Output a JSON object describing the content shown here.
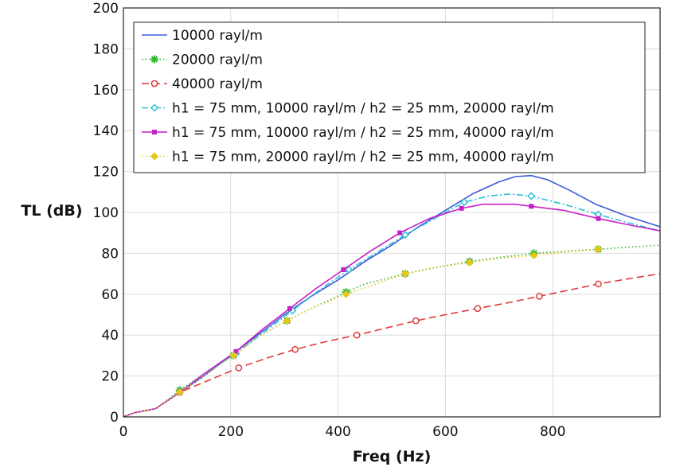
{
  "chart_data": {
    "type": "line",
    "xlabel": "Freq (Hz)",
    "ylabel": "TL (dB)",
    "xlim": [
      0,
      1000
    ],
    "ylim": [
      0,
      200
    ],
    "xticks": [
      0,
      200,
      400,
      600,
      800
    ],
    "yticks": [
      0,
      20,
      40,
      60,
      80,
      100,
      120,
      140,
      160,
      180,
      200
    ],
    "grid": true,
    "legend_position": "top-left",
    "series": [
      {
        "name": "10000 rayl/m",
        "color": "#3b5bdb",
        "line_style": "solid",
        "marker": "none",
        "x": [
          0,
          20,
          40,
          60,
          100,
          150,
          200,
          250,
          300,
          350,
          400,
          450,
          500,
          550,
          600,
          650,
          700,
          730,
          760,
          790,
          830,
          880,
          940,
          1000
        ],
        "y": [
          0,
          2,
          3,
          4,
          11,
          20,
          30,
          40,
          50,
          59,
          67,
          76,
          84,
          93,
          101,
          109,
          115,
          117.5,
          118,
          116,
          111,
          104,
          98,
          93
        ]
      },
      {
        "name": "20000 rayl/m",
        "color": "#2db82d",
        "line_style": "dotted",
        "marker": "asterisk",
        "x": [
          0,
          20,
          40,
          60,
          105,
          150,
          205,
          250,
          305,
          350,
          415,
          450,
          525,
          580,
          645,
          700,
          765,
          820,
          885,
          940,
          1000
        ],
        "y": [
          0,
          2,
          3,
          4,
          13,
          21,
          30,
          39,
          47,
          53,
          61,
          65,
          70,
          73,
          76,
          78,
          80,
          81,
          82,
          83,
          84
        ],
        "marker_x": [
          105,
          205,
          305,
          415,
          525,
          645,
          765,
          885
        ]
      },
      {
        "name": "40000 rayl/m",
        "color": "#e03a3a",
        "line_style": "dashed",
        "marker": "circle",
        "x": [
          0,
          20,
          40,
          60,
          105,
          160,
          215,
          270,
          320,
          380,
          435,
          490,
          545,
          600,
          660,
          720,
          775,
          830,
          885,
          940,
          1000
        ],
        "y": [
          0,
          2,
          3,
          4,
          12,
          18,
          24,
          29,
          33,
          37,
          40,
          43.5,
          47,
          50,
          53,
          56,
          59,
          62,
          65,
          67.5,
          70
        ],
        "marker_x": [
          105,
          215,
          320,
          435,
          545,
          660,
          775,
          885
        ]
      },
      {
        "name": "h1 = 75 mm, 10000 rayl/m / h2 = 25 mm, 20000 rayl/m",
        "color": "#2bc0d6",
        "line_style": "dashdot",
        "marker": "diamond",
        "x": [
          0,
          20,
          40,
          60,
          105,
          150,
          210,
          260,
          315,
          365,
          420,
          470,
          525,
          580,
          635,
          680,
          720,
          760,
          820,
          885,
          940,
          1000
        ],
        "y": [
          0,
          2,
          3,
          4,
          12,
          21,
          31,
          41,
          52,
          62,
          72,
          80,
          89,
          97,
          105,
          108,
          109,
          108,
          104,
          99,
          95,
          91
        ],
        "marker_x": [
          105,
          210,
          315,
          420,
          525,
          635,
          760,
          885
        ]
      },
      {
        "name": "h1 = 75 mm, 10000 rayl/m / h2 = 25 mm, 40000 rayl/m",
        "color": "#c71fc7",
        "line_style": "solid",
        "marker": "square",
        "x": [
          0,
          20,
          40,
          60,
          105,
          150,
          210,
          260,
          310,
          360,
          410,
          460,
          515,
          570,
          630,
          670,
          700,
          730,
          760,
          820,
          885,
          940,
          1000
        ],
        "y": [
          0,
          2,
          3,
          4,
          12,
          21,
          32,
          43,
          53,
          63,
          72,
          81,
          90,
          97,
          102,
          104,
          104,
          104,
          103,
          101,
          97,
          94,
          91
        ],
        "marker_x": [
          105,
          210,
          310,
          410,
          515,
          630,
          760,
          885
        ]
      },
      {
        "name": "h1 = 75 mm, 20000 rayl/m / h2 = 25 mm, 40000 rayl/m",
        "color": "#e6c619",
        "line_style": "dotted",
        "marker": "filled-diamond",
        "x": [
          0,
          20,
          40,
          60,
          105,
          150,
          205,
          250,
          305,
          350,
          415,
          460,
          525,
          580,
          645,
          700,
          765,
          820,
          885
        ],
        "y": [
          0,
          2,
          3,
          4,
          12,
          20,
          30,
          39,
          47,
          53,
          60,
          64,
          70,
          73,
          75.5,
          77.5,
          79,
          80.5,
          82
        ],
        "marker_x": [
          105,
          205,
          305,
          415,
          525,
          645,
          765,
          885
        ]
      }
    ]
  }
}
